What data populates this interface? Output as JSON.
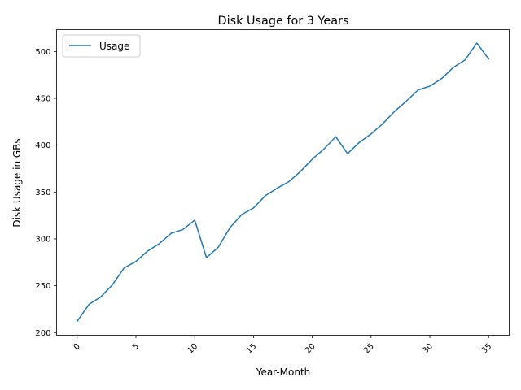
{
  "chart_data": {
    "type": "line",
    "title": "Disk Usage for 3 Years",
    "xlabel": "Year-Month",
    "ylabel": "Disk Usage in GBs",
    "xlim": [
      -1.75,
      36.75
    ],
    "ylim": [
      197.2,
      523.3
    ],
    "xticks": [
      0,
      5,
      10,
      15,
      20,
      25,
      30,
      35
    ],
    "yticks": [
      200,
      250,
      300,
      350,
      400,
      450,
      500
    ],
    "xtick_rotation": 45,
    "grid": false,
    "legend": {
      "position": "top-left"
    },
    "series": [
      {
        "name": "Usage",
        "color": "#1f77b4",
        "x": [
          0,
          1,
          2,
          3,
          4,
          5,
          6,
          7,
          8,
          9,
          10,
          11,
          12,
          13,
          14,
          15,
          16,
          17,
          18,
          19,
          20,
          21,
          22,
          23,
          24,
          25,
          26,
          27,
          28,
          29,
          30,
          31,
          32,
          33,
          34,
          35
        ],
        "values": [
          212,
          230,
          238,
          251,
          269,
          276,
          287,
          295,
          306,
          310,
          320,
          280,
          291,
          312,
          326,
          333,
          346,
          354,
          361,
          372,
          385,
          396,
          409,
          391,
          403,
          412,
          423,
          436,
          447,
          459,
          463,
          471,
          483,
          491,
          509,
          492
        ]
      }
    ]
  }
}
